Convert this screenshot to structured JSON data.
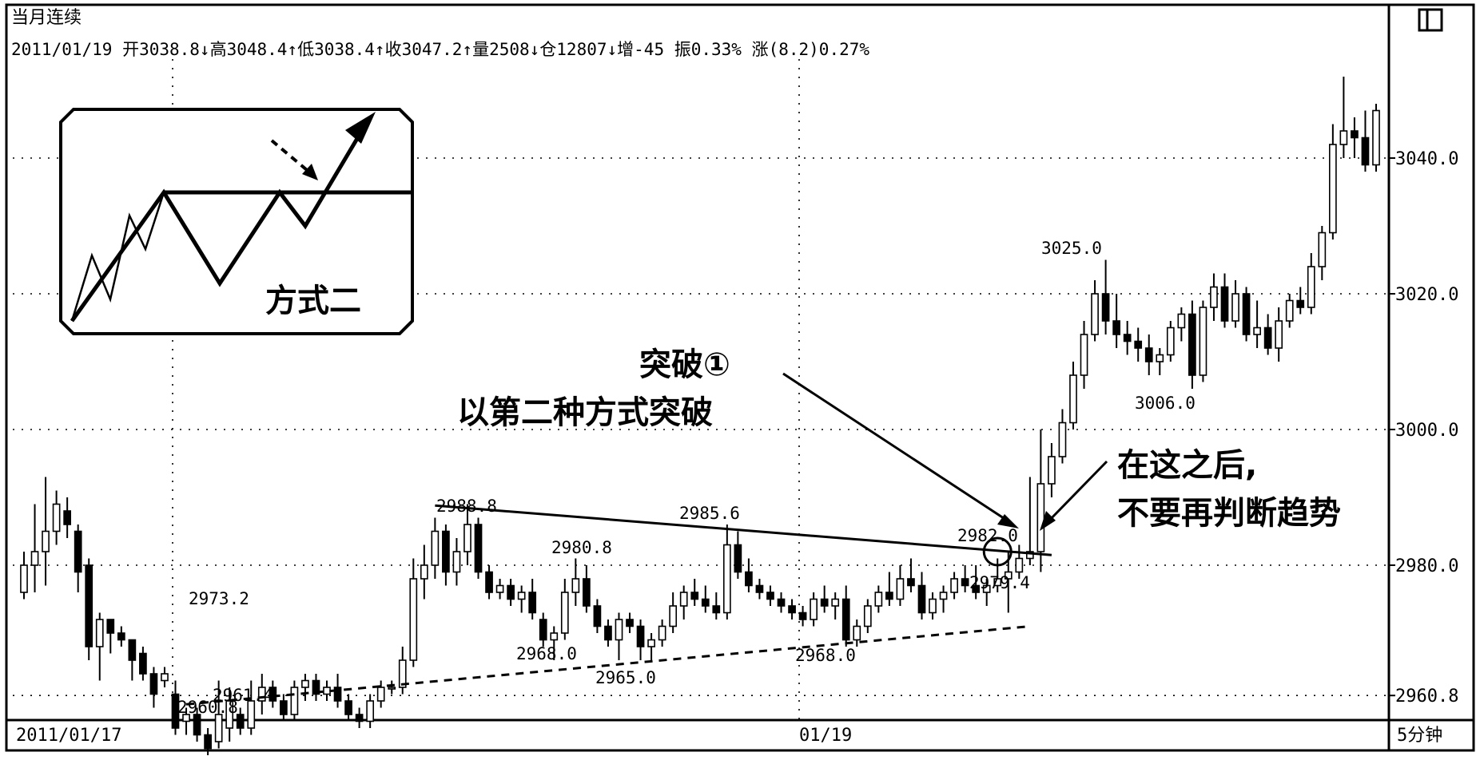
{
  "header": {
    "title": "当月连续",
    "info": "2011/01/19 开3038.8↓高3048.4↑低3038.4↑收3047.2↑量2508↓仓12807↓增-45 振0.33% 涨(8.2)0.27%"
  },
  "corner_icon": "window-restore-icon",
  "chart_data": {
    "type": "candlestick",
    "interval_label": "5分钟",
    "x_start_label": "2011/01/17",
    "x_mid_label": "01/19",
    "ylim": [
      2959,
      3053
    ],
    "yticks": [
      "3040.0",
      "3020.0",
      "3000.0",
      "2980.0",
      "2960.8"
    ],
    "ytick_values": [
      3040.0,
      3020.0,
      3000.0,
      2980.0,
      2960.8
    ],
    "grid": "dotted",
    "candles": [
      [
        2976,
        2982,
        2975,
        2980
      ],
      [
        2980,
        2989,
        2976,
        2982
      ],
      [
        2982,
        2993,
        2977,
        2985
      ],
      [
        2985,
        2991,
        2983,
        2989
      ],
      [
        2988,
        2990,
        2984,
        2986
      ],
      [
        2985,
        2986,
        2976,
        2979
      ],
      [
        2980,
        2981,
        2966,
        2968
      ],
      [
        2968,
        2973,
        2963,
        2972
      ],
      [
        2972,
        2972,
        2967,
        2970
      ],
      [
        2970,
        2971,
        2968,
        2969
      ],
      [
        2969,
        2969,
        2963,
        2966
      ],
      [
        2967,
        2968,
        2963,
        2964
      ],
      [
        2964,
        2965,
        2959,
        2961
      ],
      [
        2963,
        2965,
        2962,
        2964
      ],
      [
        2961,
        2963,
        2955,
        2956
      ],
      [
        2957,
        2959,
        2955,
        2958
      ],
      [
        2958,
        2959,
        2954,
        2955
      ],
      [
        2955,
        2956,
        2952,
        2953
      ],
      [
        2954,
        2963,
        2953,
        2958
      ],
      [
        2956,
        2962,
        2954,
        2960
      ],
      [
        2958,
        2959,
        2955,
        2956
      ],
      [
        2956,
        2963,
        2955,
        2960
      ],
      [
        2960,
        2964,
        2958,
        2962
      ],
      [
        2962,
        2963,
        2959,
        2960
      ],
      [
        2960,
        2961,
        2957,
        2958
      ],
      [
        2958,
        2963,
        2957,
        2962
      ],
      [
        2962,
        2964,
        2960,
        2963
      ],
      [
        2963,
        2964,
        2960,
        2961
      ],
      [
        2961,
        2963,
        2960,
        2962
      ],
      [
        2962,
        2964,
        2959,
        2960
      ],
      [
        2960,
        2961,
        2957,
        2958
      ],
      [
        2958,
        2959,
        2956,
        2957
      ],
      [
        2957,
        2961,
        2956,
        2960
      ],
      [
        2960,
        2963,
        2959,
        2962
      ],
      [
        2962,
        2963,
        2961,
        2962
      ],
      [
        2962,
        2968,
        2961,
        2966
      ],
      [
        2966,
        2981,
        2965,
        2978
      ],
      [
        2978,
        2983,
        2975,
        2980
      ],
      [
        2980,
        2987,
        2978,
        2985
      ],
      [
        2985,
        2986,
        2977,
        2979
      ],
      [
        2979,
        2984,
        2977,
        2982
      ],
      [
        2982,
        2989,
        2980,
        2986
      ],
      [
        2986,
        2987,
        2978,
        2979
      ],
      [
        2979,
        2980,
        2975,
        2976
      ],
      [
        2976,
        2978,
        2975,
        2977
      ],
      [
        2977,
        2978,
        2974,
        2975
      ],
      [
        2975,
        2977,
        2973,
        2976
      ],
      [
        2976,
        2978,
        2972,
        2973
      ],
      [
        2972,
        2973,
        2968,
        2969
      ],
      [
        2969,
        2971,
        2966,
        2970
      ],
      [
        2970,
        2978,
        2969,
        2976
      ],
      [
        2976,
        2981,
        2974,
        2978
      ],
      [
        2978,
        2980,
        2973,
        2974
      ],
      [
        2974,
        2975,
        2970,
        2971
      ],
      [
        2971,
        2972,
        2968,
        2969
      ],
      [
        2969,
        2973,
        2966,
        2972
      ],
      [
        2972,
        2973,
        2970,
        2971
      ],
      [
        2971,
        2972,
        2966,
        2968
      ],
      [
        2968,
        2970,
        2966,
        2969
      ],
      [
        2969,
        2972,
        2968,
        2971
      ],
      [
        2971,
        2976,
        2970,
        2974
      ],
      [
        2974,
        2977,
        2972,
        2976
      ],
      [
        2976,
        2978,
        2974,
        2975
      ],
      [
        2975,
        2977,
        2973,
        2974
      ],
      [
        2974,
        2976,
        2972,
        2973
      ],
      [
        2973,
        2986,
        2972,
        2983
      ],
      [
        2983,
        2985,
        2978,
        2979
      ],
      [
        2979,
        2981,
        2976,
        2977
      ],
      [
        2977,
        2978,
        2975,
        2976
      ],
      [
        2976,
        2977,
        2974,
        2975
      ],
      [
        2975,
        2976,
        2973,
        2974
      ],
      [
        2974,
        2975,
        2972,
        2973
      ],
      [
        2973,
        2974,
        2971,
        2972
      ],
      [
        2972,
        2976,
        2971,
        2975
      ],
      [
        2975,
        2977,
        2973,
        2974
      ],
      [
        2974,
        2976,
        2972,
        2975
      ],
      [
        2975,
        2977,
        2968,
        2969
      ],
      [
        2969,
        2972,
        2968,
        2971
      ],
      [
        2971,
        2975,
        2970,
        2974
      ],
      [
        2974,
        2977,
        2973,
        2976
      ],
      [
        2976,
        2979,
        2974,
        2975
      ],
      [
        2975,
        2980,
        2974,
        2978
      ],
      [
        2978,
        2981,
        2976,
        2977
      ],
      [
        2977,
        2979,
        2972,
        2973
      ],
      [
        2973,
        2976,
        2972,
        2975
      ],
      [
        2975,
        2977,
        2973,
        2976
      ],
      [
        2976,
        2979,
        2975,
        2978
      ],
      [
        2978,
        2980,
        2976,
        2977
      ],
      [
        2977,
        2980,
        2975,
        2976
      ],
      [
        2976,
        2978,
        2974,
        2977
      ],
      [
        2977,
        2981,
        2976,
        2978
      ],
      [
        2978,
        2982,
        2973,
        2979
      ],
      [
        2979,
        2983,
        2978,
        2981
      ],
      [
        2981,
        2993,
        2980,
        2982
      ],
      [
        2982,
        3000,
        2979,
        2992
      ],
      [
        2992,
        2998,
        2990,
        2996
      ],
      [
        2996,
        3003,
        2995,
        3001
      ],
      [
        3001,
        3010,
        3000,
        3008
      ],
      [
        3008,
        3016,
        3006,
        3014
      ],
      [
        3014,
        3022,
        3013,
        3020
      ],
      [
        3020,
        3025,
        3014,
        3016
      ],
      [
        3016,
        3020,
        3012,
        3014
      ],
      [
        3014,
        3016,
        3011,
        3013
      ],
      [
        3013,
        3015,
        3010,
        3012
      ],
      [
        3012,
        3014,
        3008,
        3010
      ],
      [
        3010,
        3012,
        3008,
        3011
      ],
      [
        3011,
        3016,
        3010,
        3015
      ],
      [
        3015,
        3018,
        3013,
        3017
      ],
      [
        3017,
        3019,
        3006,
        3008
      ],
      [
        3008,
        3019,
        3007,
        3018
      ],
      [
        3018,
        3023,
        3016,
        3021
      ],
      [
        3021,
        3023,
        3015,
        3016
      ],
      [
        3016,
        3022,
        3015,
        3020
      ],
      [
        3020,
        3021,
        3013,
        3014
      ],
      [
        3014,
        3019,
        3012,
        3015
      ],
      [
        3015,
        3017,
        3011,
        3012
      ],
      [
        3012,
        3018,
        3010,
        3016
      ],
      [
        3016,
        3020,
        3015,
        3019
      ],
      [
        3019,
        3021,
        3017,
        3018
      ],
      [
        3018,
        3026,
        3017,
        3024
      ],
      [
        3024,
        3030,
        3022,
        3029
      ],
      [
        3029,
        3045,
        3028,
        3042
      ],
      [
        3042,
        3052,
        3040,
        3044
      ],
      [
        3044,
        3046,
        3040,
        3043
      ],
      [
        3043,
        3047,
        3038,
        3039
      ],
      [
        3039,
        3048,
        3038,
        3047
      ]
    ],
    "price_labels": [
      "2973.2",
      "2988.8",
      "2980.8",
      "2985.6",
      "2968.0",
      "2965.0",
      "2968.0",
      "2960.8",
      "2961.4",
      "2982.0",
      "2979.4",
      "3025.0",
      "3006.0"
    ],
    "inset_label": "方式二",
    "annotations": {
      "break_title": "突破①",
      "break_subtitle": "以第二种方式突破",
      "after_line1": "在这之后,",
      "after_line2": "不要再判断趋势"
    }
  }
}
